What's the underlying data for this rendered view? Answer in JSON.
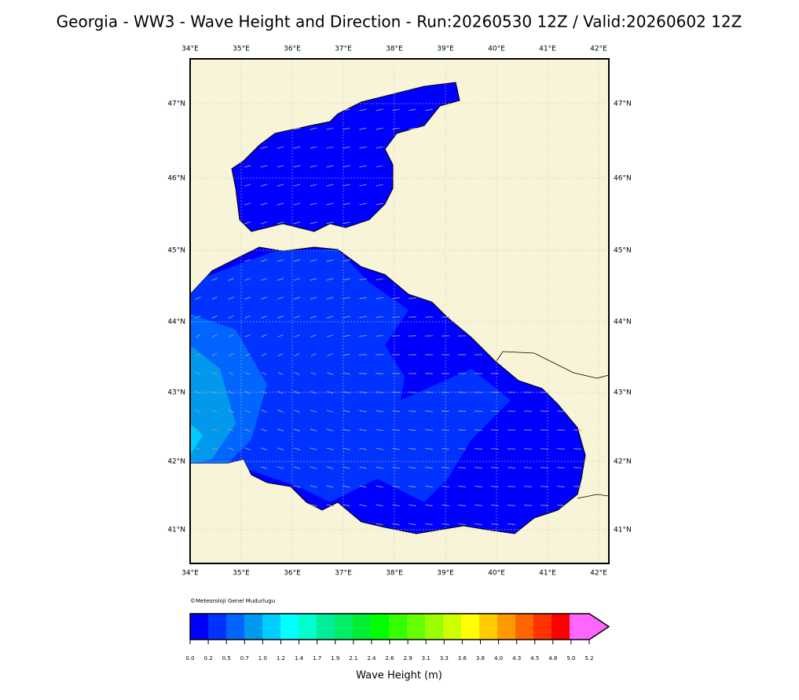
{
  "title": "Georgia - WW3 - Wave Height and Direction - Run:20260530 12Z / Valid:20260602 12Z",
  "map": {
    "lon_labels": [
      "34°E",
      "35°E",
      "36°E",
      "37°E",
      "38°E",
      "39°E",
      "40°E",
      "41°E",
      "42°E"
    ],
    "lat_labels": [
      "47°N",
      "46°N",
      "45°N",
      "44°N",
      "43°N",
      "42°N",
      "41°N"
    ],
    "credit": "©Meteoroloji Genel Mudurlugu"
  },
  "colorbar": {
    "label": "Wave Height (m)",
    "ticks": [
      "0.0",
      "0.2",
      "0.5",
      "0.7",
      "1.0",
      "1.2",
      "1.4",
      "1.7",
      "1.9",
      "2.1",
      "2.4",
      "2.6",
      "2.9",
      "3.1",
      "3.3",
      "3.6",
      "3.8",
      "4.0",
      "4.3",
      "4.5",
      "4.8",
      "5.0",
      "5.2"
    ],
    "colors": [
      "#0000ff",
      "#0033ff",
      "#0066ff",
      "#0099ee",
      "#00ccff",
      "#00ffff",
      "#00ffcc",
      "#00ee99",
      "#00ee66",
      "#00ee33",
      "#00ff00",
      "#33ff00",
      "#66ff00",
      "#99ff00",
      "#ccff00",
      "#ffff00",
      "#ffcc00",
      "#ff9900",
      "#ff6600",
      "#ff3300",
      "#ff0000"
    ],
    "extend_color": "#ff66ff"
  }
}
